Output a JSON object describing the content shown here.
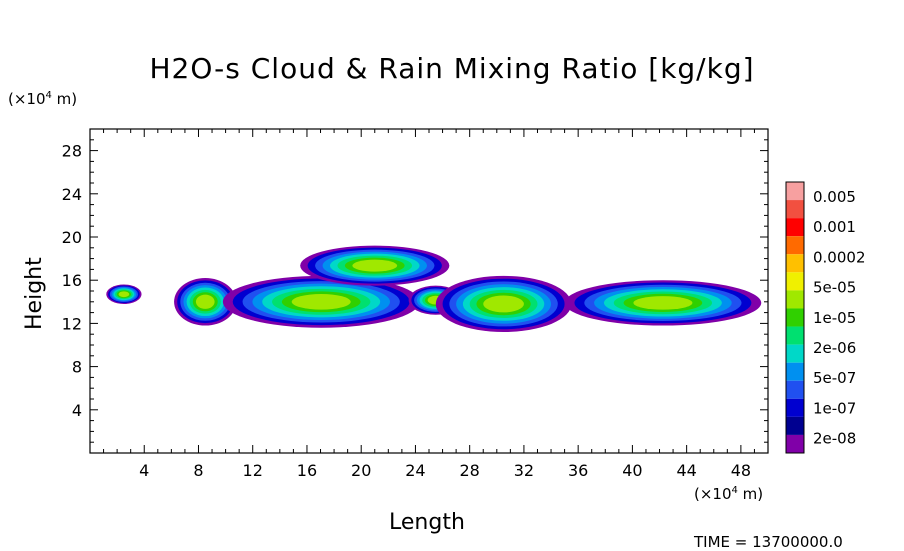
{
  "chart_data": {
    "type": "heatmap",
    "title": "H2O-s Cloud & Rain Mixing Ratio [kg/kg]",
    "xlabel": "Length",
    "ylabel": "Height",
    "x_unit_prefix": "(×10",
    "x_unit_exp": "4",
    "x_unit_suffix": " m)",
    "y_unit_prefix": "(×10",
    "y_unit_exp": "4",
    "y_unit_suffix": " m)",
    "xlim": [
      0,
      50
    ],
    "ylim": [
      0,
      30
    ],
    "x_ticks": [
      4,
      8,
      12,
      16,
      20,
      24,
      28,
      32,
      36,
      40,
      44,
      48
    ],
    "y_ticks": [
      4,
      8,
      12,
      16,
      20,
      24,
      28
    ],
    "colorbar": {
      "labels": [
        "0.005",
        "0.001",
        "0.0002",
        "5e-05",
        "1e-05",
        "2e-06",
        "5e-07",
        "1e-07",
        "2e-08"
      ],
      "colors": [
        "#f7a0a0",
        "#f25040",
        "#ff0000",
        "#ff6a00",
        "#ffc000",
        "#f0f000",
        "#a0e800",
        "#30d000",
        "#00e070",
        "#00d8c8",
        "#0090f0",
        "#2050f0",
        "#0000d0",
        "#000090",
        "#8000a8"
      ]
    },
    "blobs": [
      {
        "x": [
          1.2,
          3.8
        ],
        "y": [
          13.8,
          15.6
        ]
      },
      {
        "x": [
          6.2,
          10.8
        ],
        "y": [
          11.8,
          16.2
        ]
      },
      {
        "x": [
          9.8,
          24.3
        ],
        "y": [
          11.6,
          16.4
        ]
      },
      {
        "x": [
          15.5,
          26.5
        ],
        "y": [
          15.5,
          19.2
        ]
      },
      {
        "x": [
          23.5,
          27.5
        ],
        "y": [
          12.8,
          15.5
        ]
      },
      {
        "x": [
          25.5,
          35.5
        ],
        "y": [
          11.2,
          16.4
        ]
      },
      {
        "x": [
          35.0,
          49.5
        ],
        "y": [
          11.8,
          16.0
        ]
      }
    ],
    "time_text": "TIME = 13700000.0"
  }
}
